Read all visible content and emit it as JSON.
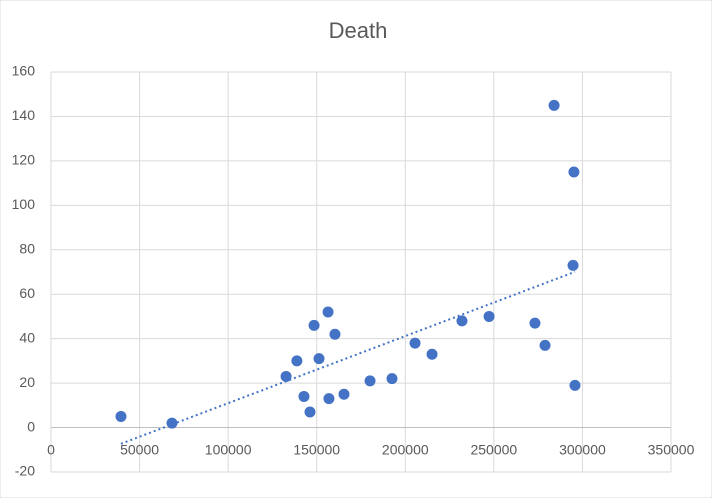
{
  "chart_data": {
    "type": "scatter",
    "title": "Death",
    "x": [
      39500,
      68300,
      132700,
      138800,
      142800,
      146200,
      148500,
      151300,
      156400,
      156900,
      160300,
      165400,
      180100,
      192500,
      205500,
      215100,
      232000,
      247300,
      273200,
      278900,
      284000,
      295200,
      294700,
      295800
    ],
    "values": [
      5,
      2,
      23,
      30,
      14,
      7,
      46,
      31,
      52,
      13,
      42,
      15,
      21,
      22,
      38,
      33,
      48,
      50,
      47,
      37,
      145,
      115,
      73,
      19
    ],
    "color": "#4472c4",
    "xlim": [
      0,
      350000
    ],
    "xticks": [
      0,
      50000,
      100000,
      150000,
      200000,
      250000,
      300000,
      350000
    ],
    "ylim": [
      -20,
      160
    ],
    "yticks": [
      -20,
      0,
      20,
      40,
      60,
      80,
      100,
      120,
      140,
      160
    ],
    "grid": true,
    "trendline": true
  }
}
